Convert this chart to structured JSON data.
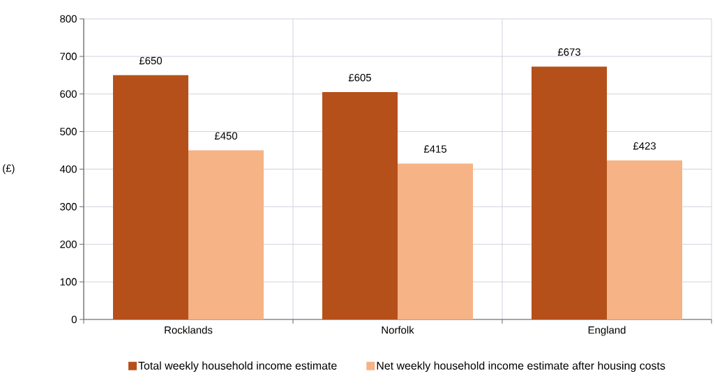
{
  "chart_data": {
    "type": "bar",
    "ylabel": "(£)",
    "categories": [
      "Rocklands",
      "Norfolk",
      "England"
    ],
    "series": [
      {
        "name": "Total weekly household income estimate",
        "color": "#b5501a",
        "values": [
          650,
          605,
          673
        ],
        "value_labels": [
          "£650",
          "£605",
          "£673"
        ]
      },
      {
        "name": "Net weekly household income estimate after housing costs",
        "color": "#f5b386",
        "values": [
          450,
          415,
          423
        ],
        "value_labels": [
          "£450",
          "£415",
          "£423"
        ]
      }
    ],
    "ylim": [
      0,
      800
    ],
    "yticks": [
      0,
      100,
      200,
      300,
      400,
      500,
      600,
      700,
      800
    ],
    "grid": true,
    "legend": "bottom"
  }
}
